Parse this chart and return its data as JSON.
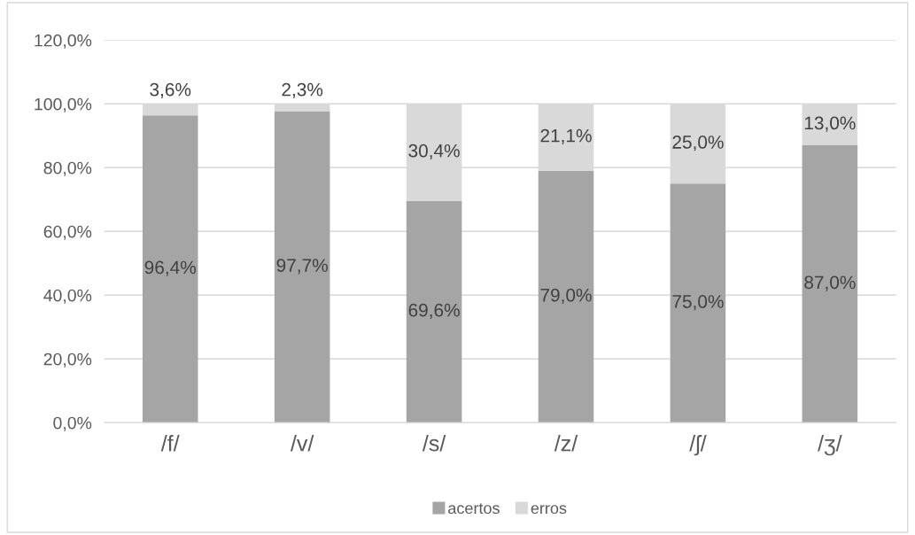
{
  "chart_data": {
    "type": "bar",
    "stacked": true,
    "categories": [
      "/f/",
      "/v/",
      "/s/",
      "/z/",
      "/ʃ/",
      "/ʒ/"
    ],
    "series": [
      {
        "name": "acertos",
        "color": "#a5a5a5",
        "values": [
          96.4,
          97.7,
          69.6,
          79.0,
          75.0,
          87.0
        ],
        "value_labels": [
          "96,4%",
          "97,7%",
          "69,6%",
          "79,0%",
          "75,0%",
          "87,0%"
        ]
      },
      {
        "name": "erros",
        "color": "#d9d9d9",
        "values": [
          3.6,
          2.3,
          30.4,
          21.1,
          25.0,
          13.0
        ],
        "value_labels": [
          "3,6%",
          "2,3%",
          "30,4%",
          "21,1%",
          "25,0%",
          "13,0%"
        ]
      }
    ],
    "ylim": [
      0,
      120
    ],
    "yticks": [
      {
        "value": 0,
        "label": "0,0%"
      },
      {
        "value": 20,
        "label": "20,0%"
      },
      {
        "value": 40,
        "label": "40,0%"
      },
      {
        "value": 60,
        "label": "60,0%"
      },
      {
        "value": 80,
        "label": "80,0%"
      },
      {
        "value": 100,
        "label": "100,0%"
      },
      {
        "value": 120,
        "label": "120,0%"
      }
    ],
    "grid": "y",
    "legend": "bottom"
  }
}
